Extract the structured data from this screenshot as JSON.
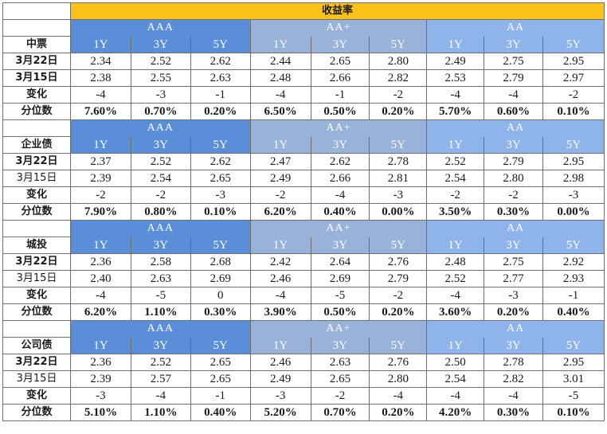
{
  "header": {
    "title": "收益率"
  },
  "groups": [
    "AAA",
    "AA+",
    "AA"
  ],
  "tenors": [
    "1Y",
    "3Y",
    "5Y"
  ],
  "sections": [
    {
      "name": "中票",
      "rows": [
        {
          "label": "3月22日",
          "label_bold": true,
          "values_bold": false,
          "values": [
            "2.34",
            "2.52",
            "2.62",
            "2.44",
            "2.65",
            "2.80",
            "2.49",
            "2.75",
            "2.95"
          ]
        },
        {
          "label": "3月15日",
          "label_bold": true,
          "values_bold": false,
          "values": [
            "2.38",
            "2.55",
            "2.63",
            "2.48",
            "2.66",
            "2.82",
            "2.53",
            "2.79",
            "2.97"
          ]
        },
        {
          "label": "变化",
          "label_bold": true,
          "values_bold": false,
          "values": [
            "-4",
            "-3",
            "-1",
            "-4",
            "-1",
            "-2",
            "-4",
            "-4",
            "-2"
          ]
        },
        {
          "label": "分位数",
          "label_bold": true,
          "values_bold": true,
          "values": [
            "7.60%",
            "0.70%",
            "0.20%",
            "6.50%",
            "0.50%",
            "0.20%",
            "5.70%",
            "0.60%",
            "0.10%"
          ]
        }
      ]
    },
    {
      "name": "企业债",
      "rows": [
        {
          "label": "3月22日",
          "label_bold": true,
          "values_bold": false,
          "values": [
            "2.37",
            "2.52",
            "2.62",
            "2.47",
            "2.62",
            "2.78",
            "2.52",
            "2.79",
            "2.95"
          ]
        },
        {
          "label": "3月15日",
          "label_bold": false,
          "values_bold": false,
          "values": [
            "2.39",
            "2.54",
            "2.65",
            "2.49",
            "2.66",
            "2.81",
            "2.54",
            "2.80",
            "2.98"
          ]
        },
        {
          "label": "变化",
          "label_bold": true,
          "values_bold": false,
          "values": [
            "-2",
            "-2",
            "-3",
            "-2",
            "-4",
            "-3",
            "-2",
            "-2",
            "-3"
          ]
        },
        {
          "label": "分位数",
          "label_bold": true,
          "values_bold": true,
          "values": [
            "7.90%",
            "0.80%",
            "0.10%",
            "6.20%",
            "0.40%",
            "0.00%",
            "3.50%",
            "0.30%",
            "0.00%"
          ]
        }
      ]
    },
    {
      "name": "城投",
      "rows": [
        {
          "label": "3月22日",
          "label_bold": true,
          "values_bold": false,
          "values": [
            "2.36",
            "2.58",
            "2.68",
            "2.42",
            "2.64",
            "2.76",
            "2.48",
            "2.75",
            "2.92"
          ]
        },
        {
          "label": "3月15日",
          "label_bold": false,
          "values_bold": false,
          "values": [
            "2.40",
            "2.63",
            "2.69",
            "2.46",
            "2.69",
            "2.79",
            "2.52",
            "2.77",
            "2.93"
          ]
        },
        {
          "label": "变化",
          "label_bold": true,
          "values_bold": false,
          "values": [
            "-4",
            "-5",
            "0",
            "-4",
            "-5",
            "-2",
            "-4",
            "-3",
            "-1"
          ]
        },
        {
          "label": "分位数",
          "label_bold": true,
          "values_bold": true,
          "values": [
            "6.20%",
            "1.10%",
            "0.30%",
            "3.90%",
            "0.50%",
            "0.20%",
            "3.60%",
            "0.20%",
            "0.40%"
          ]
        }
      ]
    },
    {
      "name": "公司债",
      "rows": [
        {
          "label": "3月22日",
          "label_bold": true,
          "values_bold": false,
          "values": [
            "2.36",
            "2.52",
            "2.65",
            "2.46",
            "2.63",
            "2.76",
            "2.50",
            "2.78",
            "2.95"
          ]
        },
        {
          "label": "3月15日",
          "label_bold": false,
          "values_bold": false,
          "values": [
            "2.39",
            "2.57",
            "2.65",
            "2.49",
            "2.65",
            "2.80",
            "2.54",
            "2.82",
            "3.01"
          ]
        },
        {
          "label": "变化",
          "label_bold": true,
          "values_bold": false,
          "values": [
            "-3",
            "-4",
            "-1",
            "-3",
            "-2",
            "-4",
            "-4",
            "-4",
            "-5"
          ]
        },
        {
          "label": "分位数",
          "label_bold": true,
          "values_bold": true,
          "values": [
            "5.10%",
            "1.10%",
            "0.40%",
            "5.20%",
            "0.70%",
            "0.20%",
            "4.20%",
            "0.30%",
            "0.10%"
          ]
        }
      ]
    }
  ]
}
